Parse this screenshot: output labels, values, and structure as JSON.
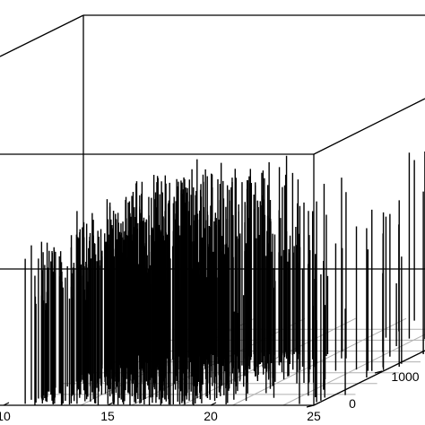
{
  "chart_data": {
    "type": "bar",
    "subtype": "3d-stem",
    "title": "",
    "xlabel": "",
    "ylabel": "",
    "zlabel": "",
    "grid": true,
    "x_ticks": [
      "10",
      "15",
      "20",
      "25"
    ],
    "y_ticks": [
      "0",
      "1000"
    ],
    "xlim": [
      9.5,
      25
    ],
    "ylim": [
      0,
      1600
    ],
    "zlim": [
      0,
      1
    ],
    "stem_color": "#000000",
    "grid_color": "#b0b0b0",
    "axis_color": "#000000",
    "density": [
      {
        "x_range": [
          9.5,
          11.5
        ],
        "y_range": [
          0,
          1000
        ],
        "count": 160,
        "height_range": [
          0.35,
          0.62
        ]
      },
      {
        "x_range": [
          11.5,
          14.5
        ],
        "y_range": [
          0,
          1000
        ],
        "count": 220,
        "height_range": [
          0.38,
          0.78
        ]
      },
      {
        "x_range": [
          14.5,
          18.5
        ],
        "y_range": [
          0,
          1000
        ],
        "count": 240,
        "height_range": [
          0.4,
          0.8
        ]
      },
      {
        "x_range": [
          18.5,
          20.5
        ],
        "y_range": [
          0,
          1000
        ],
        "count": 40,
        "height_range": [
          0.3,
          0.72
        ]
      },
      {
        "x_range": [
          20.5,
          25
        ],
        "y_range": [
          0,
          1600
        ],
        "count": 45,
        "height_range": [
          0.25,
          0.75
        ]
      }
    ]
  }
}
